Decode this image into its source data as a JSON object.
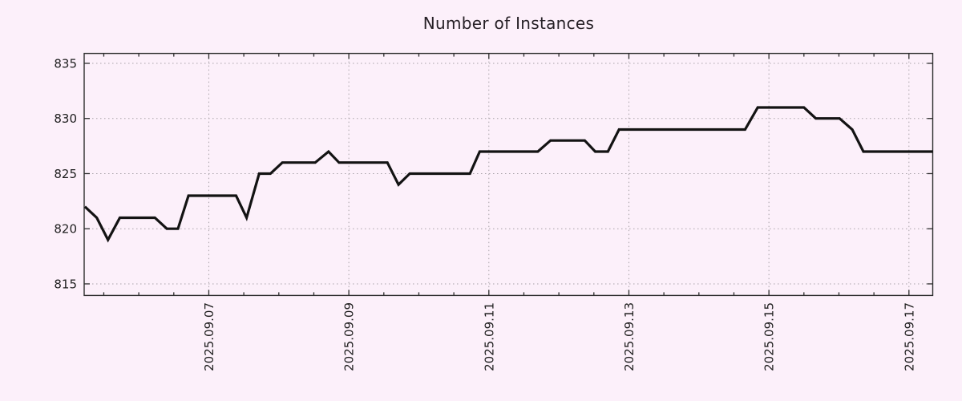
{
  "chart_data": {
    "type": "line",
    "title": "Number of Instances",
    "legend": "none",
    "grid": "dotted at major ticks",
    "xlim": [
      5.22,
      17.34
    ],
    "ylim": [
      813.95,
      835.9
    ],
    "x_axis": {
      "tick_labels": [
        "2025.09.07",
        "2025.09.09",
        "2025.09.11",
        "2025.09.13",
        "2025.09.15",
        "2025.09.17"
      ],
      "tick_positions": [
        7,
        9,
        11,
        13,
        15,
        17
      ],
      "minor_tick_step": 0.5
    },
    "y_axis": {
      "tick_labels": [
        "815",
        "820",
        "825",
        "830",
        "835"
      ],
      "tick_positions": [
        815,
        820,
        825,
        830,
        835
      ]
    },
    "series": [
      {
        "name": "instances",
        "color": "#131313",
        "points_x_unit": "day of 2025-09 (decimal)",
        "points": [
          [
            5.23,
            822
          ],
          [
            5.4,
            821
          ],
          [
            5.56,
            819
          ],
          [
            5.73,
            821
          ],
          [
            6.23,
            821
          ],
          [
            6.4,
            820
          ],
          [
            6.56,
            820
          ],
          [
            6.71,
            823
          ],
          [
            7.39,
            823
          ],
          [
            7.54,
            821
          ],
          [
            7.72,
            825
          ],
          [
            7.88,
            825
          ],
          [
            8.05,
            826
          ],
          [
            8.52,
            826
          ],
          [
            8.71,
            827
          ],
          [
            8.86,
            826
          ],
          [
            9.55,
            826
          ],
          [
            9.71,
            824
          ],
          [
            9.87,
            825
          ],
          [
            10.73,
            825
          ],
          [
            10.87,
            827
          ],
          [
            11.7,
            827
          ],
          [
            11.88,
            828
          ],
          [
            12.37,
            828
          ],
          [
            12.52,
            827
          ],
          [
            12.7,
            827
          ],
          [
            12.86,
            829
          ],
          [
            14.66,
            829
          ],
          [
            14.84,
            831
          ],
          [
            15.5,
            831
          ],
          [
            15.67,
            830
          ],
          [
            16.01,
            830
          ],
          [
            16.19,
            829
          ],
          [
            16.35,
            827
          ],
          [
            17.34,
            827
          ]
        ]
      }
    ],
    "colors": {
      "background": "#fcf0fa",
      "line": "#131313",
      "grid": "#a8a2a8",
      "axis": "#2d2d2d",
      "text": "#1e1e1e"
    }
  }
}
